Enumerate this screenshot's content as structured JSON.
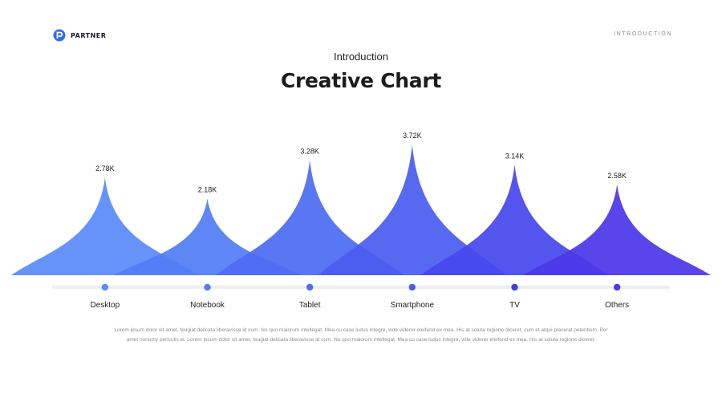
{
  "brand": {
    "name": "PARTNER",
    "icon": "partner-logo-icon",
    "color": "#2F6BFF"
  },
  "header": {
    "section": "INTRODUCTION"
  },
  "slide": {
    "subtitle": "Introduction",
    "title": "Creative Chart",
    "body": "Lorem ipsum dolor sit amet, feugiat delicata liberavisse id cum. No quo maiorum intellegat. Mea cu case ludus integre, vide viderer eleifend ex mea. His at soluta regione diceret, cum et atqui placerat petentium. Per amet nonumy periculis ei. Lorem ipsum dolor sit amet, feugiat delicata liberavisse id cum. No quo maiorum intellegat. Mea cu case ludus integre, vide viderer eleifend ex mea. His at soluta regione diceret."
  },
  "chart_data": {
    "type": "area",
    "categories": [
      "Desktop",
      "Notebook",
      "Tablet",
      "Smartphone",
      "TV",
      "Others"
    ],
    "values": [
      2.78,
      2.18,
      3.28,
      3.72,
      3.14,
      2.58
    ],
    "value_labels": [
      "2.78K",
      "2.18K",
      "3.28K",
      "3.72K",
      "3.14K",
      "2.58K"
    ],
    "ylim": [
      0,
      3.72
    ],
    "grid": false,
    "colors": [
      "#5A8BFA",
      "#537DF4",
      "#4D6DF2",
      "#4A5DF0",
      "#4747EE",
      "#4B38E8"
    ],
    "dot_colors": [
      "#5A8BFA",
      "#537DF4",
      "#4D6DF2",
      "#4A5DF0",
      "#4040E4",
      "#4B38E8"
    ],
    "baseline_color": "#EEEEEE"
  }
}
